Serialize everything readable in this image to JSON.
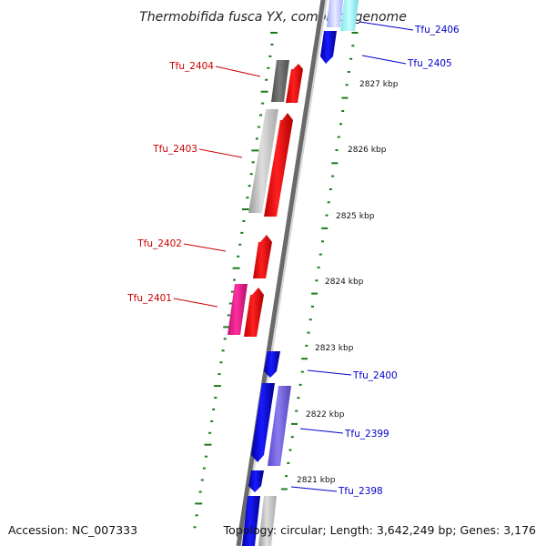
{
  "title": "Thermobifida fusca YX, complete genome",
  "accession": "Accession: NC_007333",
  "topology": "Topology: circular; Length: 3,642,249 bp; Genes: 3,176",
  "scale_labels": [
    "2827 kbp",
    "2826 kbp",
    "2825 kbp",
    "2824 kbp",
    "2823 kbp",
    "2822 kbp",
    "2821 kbp"
  ],
  "gene_labels": {
    "reverse": [
      "Tfu_2404",
      "Tfu_2403",
      "Tfu_2402",
      "Tfu_2401"
    ],
    "forward": [
      "Tfu_2406",
      "Tfu_2405",
      "Tfu_2400",
      "Tfu_2399",
      "Tfu_2398"
    ]
  },
  "colors": {
    "backbone_dark": "#6a6a6a",
    "backbone_light": "#d8d8d8",
    "tick": "#1a7a1a",
    "red_gene": "#ff0000",
    "blue_gene": "#0000ee",
    "grey_gene": "#c8c8c8",
    "dark_grey_gene": "#6a6a6a",
    "magenta_gene": "#ff1493",
    "purple_gene": "#7b68ee",
    "cyan_gene": "#40e0d0",
    "red_label": "#cc0000",
    "blue_label": "#0000cc"
  }
}
